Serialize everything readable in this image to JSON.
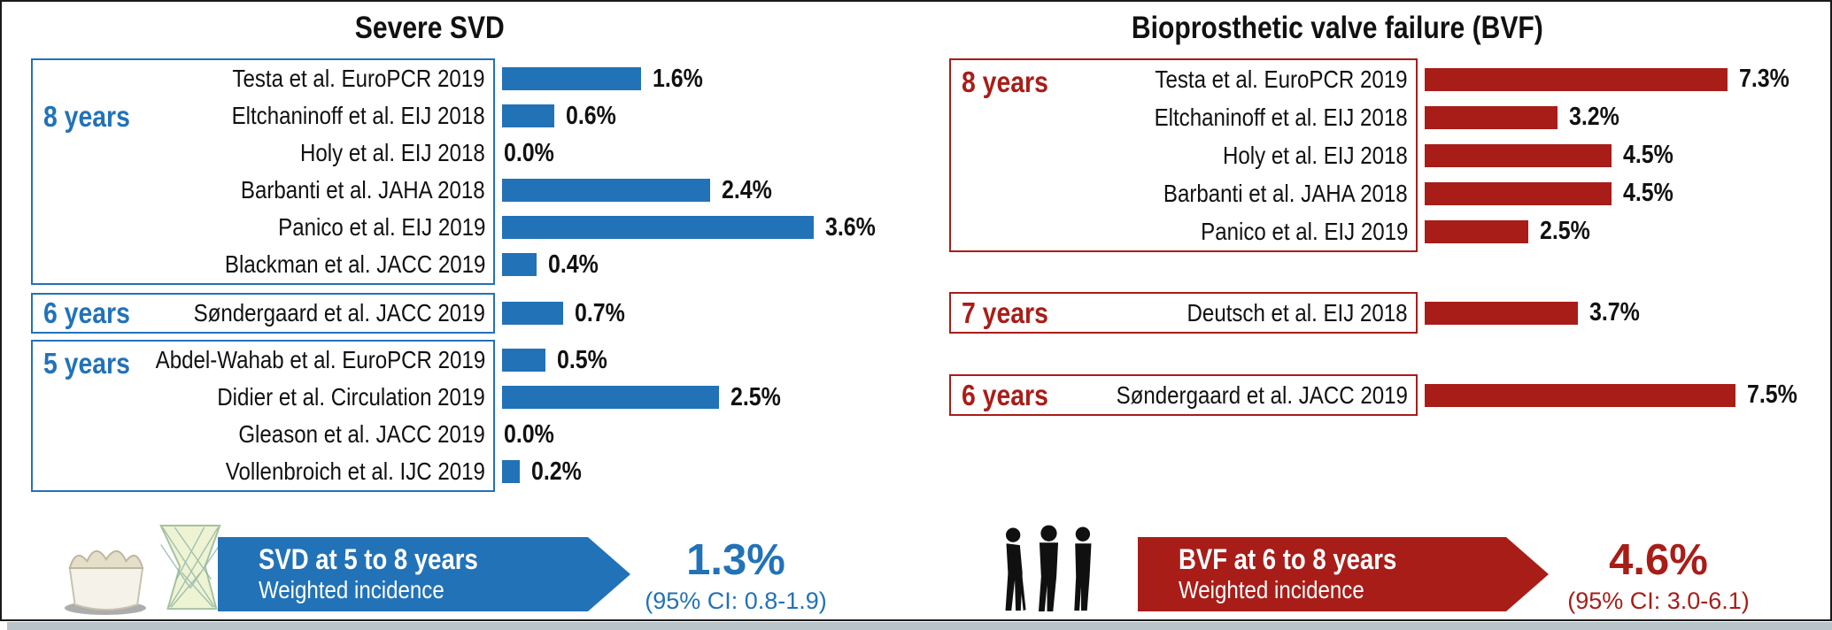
{
  "chart_data": [
    {
      "type": "bar",
      "orientation": "horizontal",
      "title": "Severe SVD",
      "accent": "#2272b8",
      "unit": "%",
      "xlim": [
        0,
        3.8
      ],
      "legend_position": "none",
      "grid": false,
      "groups": [
        {
          "label": "8 years",
          "items": [
            {
              "study": "Testa et al. EuroPCR 2019",
              "value": 1.6
            },
            {
              "study": "Eltchaninoff et al. EIJ 2018",
              "value": 0.6
            },
            {
              "study": "Holy et al. EIJ 2018",
              "value": 0.0
            },
            {
              "study": "Barbanti et al. JAHA 2018",
              "value": 2.4
            },
            {
              "study": "Panico et al. EIJ 2019",
              "value": 3.6
            },
            {
              "study": "Blackman et al. JACC 2019",
              "value": 0.4
            }
          ]
        },
        {
          "label": "6 years",
          "items": [
            {
              "study": "Søndergaard et al. JACC 2019",
              "value": 0.7
            }
          ]
        },
        {
          "label": "5 years",
          "items": [
            {
              "study": "Abdel-Wahab et al. EuroPCR 2019",
              "value": 0.5
            },
            {
              "study": "Didier et al. Circulation 2019",
              "value": 2.5
            },
            {
              "study": "Gleason et al. JACC 2019",
              "value": 0.0
            },
            {
              "study": "Vollenbroich et al. IJC 2019",
              "value": 0.2
            }
          ]
        }
      ],
      "summary": {
        "icon": "bioprosthetic-valve-icon",
        "banner_line1": "SVD at 5 to 8 years",
        "banner_line2": "Weighted incidence",
        "result": "1.3%",
        "ci": "(95% CI: 0.8-1.9)"
      }
    },
    {
      "type": "bar",
      "orientation": "horizontal",
      "title": "Bioprosthetic valve failure (BVF)",
      "accent": "#a81d18",
      "unit": "%",
      "xlim": [
        0,
        7.8
      ],
      "legend_position": "none",
      "grid": false,
      "groups": [
        {
          "label": "8 years",
          "items": [
            {
              "study": "Testa et al. EuroPCR 2019",
              "value": 7.3
            },
            {
              "study": "Eltchaninoff et al. EIJ 2018",
              "value": 3.2
            },
            {
              "study": "Holy et al. EIJ 2018",
              "value": 4.5
            },
            {
              "study": "Barbanti et al. JAHA 2018",
              "value": 4.5
            },
            {
              "study": "Panico et al. EIJ 2019",
              "value": 2.5
            }
          ]
        },
        {
          "label": "7 years",
          "items": [
            {
              "study": "Deutsch et al. EIJ 2018",
              "value": 3.7
            }
          ]
        },
        {
          "label": "6 years",
          "items": [
            {
              "study": "Søndergaard et al. JACC 2019",
              "value": 7.5
            }
          ]
        }
      ],
      "summary": {
        "icon": "elderly-patients-icon",
        "banner_line1": "BVF at 6 to 8 years",
        "banner_line2": "Weighted incidence",
        "result": "4.6%",
        "ci": "(95% CI: 3.0-6.1)"
      }
    }
  ]
}
